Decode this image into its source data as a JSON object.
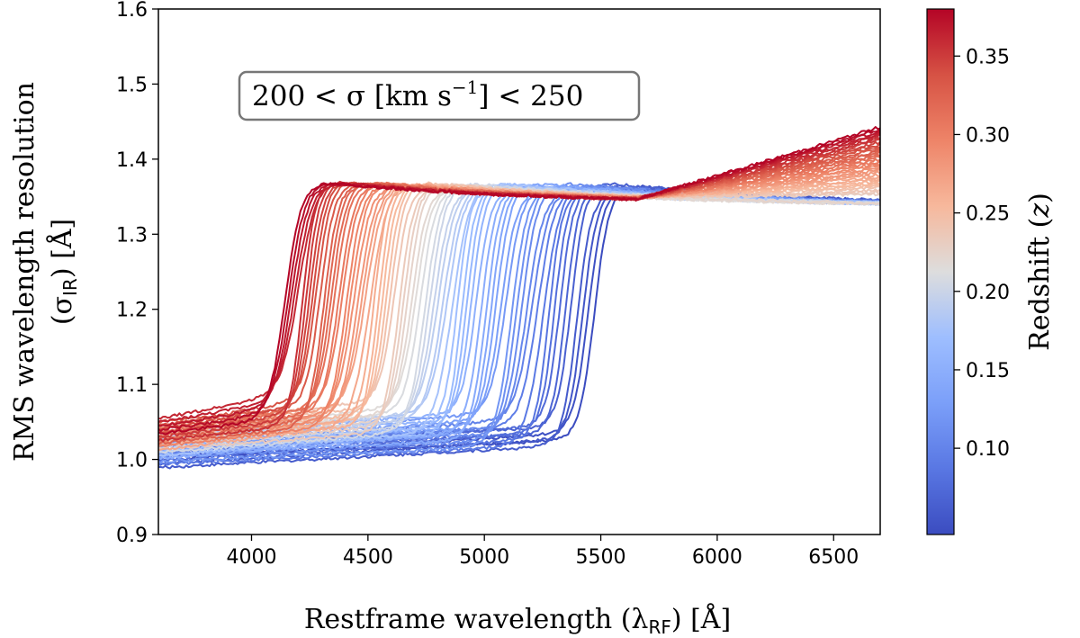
{
  "chart_data": {
    "type": "line",
    "title": "",
    "xlabel": "Restframe wavelength (λ",
    "xlabel_sub": "RF",
    "xlabel_unit": ") [Å]",
    "ylabel_line1": "RMS wavelength resolution",
    "ylabel_line2_pre": "(σ",
    "ylabel_line2_sub": "IR",
    "ylabel_line2_post": ") [Å]",
    "xlim": [
      3600,
      6700
    ],
    "ylim": [
      0.9,
      1.6
    ],
    "xticks": [
      4000,
      4500,
      5000,
      5500,
      6000,
      6500
    ],
    "yticks": [
      0.9,
      1.0,
      1.1,
      1.2,
      1.3,
      1.4,
      1.5,
      1.6
    ],
    "annotation": {
      "text_pre": "200 < σ [km s",
      "superscript": "−1",
      "text_post": "] < 250"
    },
    "colorbar": {
      "label": "Redshift (z)",
      "label_pre": "Redshift (",
      "label_var": "z",
      "label_post": ")",
      "range": [
        0.045,
        0.38
      ],
      "ticks": [
        0.1,
        0.15,
        0.2,
        0.25,
        0.3,
        0.35
      ],
      "tick_labels": [
        "0.10",
        "0.15",
        "0.20",
        "0.25",
        "0.30",
        "0.35"
      ],
      "colormap": "coolwarm"
    },
    "series_model": {
      "description": "One curve per galaxy; low plateau ~1.0-1.07 Å then sharp rise at a transition wavelength ≈ 5720/(1+z) Å to ~1.34-1.37 Å plateau",
      "redshift_min": 0.045,
      "redshift_max": 0.38,
      "count": 70,
      "transition_numerator": 5720,
      "low_level_min": 0.985,
      "low_level_max": 1.06,
      "high_level_peak": 1.375,
      "high_level_tail": 1.34
    }
  }
}
